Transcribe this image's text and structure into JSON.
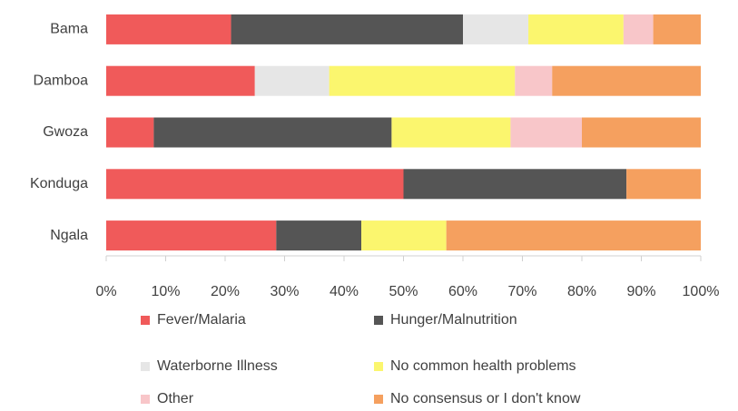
{
  "chart_data": {
    "type": "stacked_barh",
    "categories": [
      "Bama",
      "Damboa",
      "Gwoza",
      "Konduga",
      "Ngala"
    ],
    "series": [
      {
        "name": "Fever/Malaria",
        "color": "#f05a5a",
        "values": [
          21,
          25,
          8,
          50,
          28.6
        ]
      },
      {
        "name": "Hunger/Malnutrition",
        "color": "#555555",
        "values": [
          39,
          0,
          40,
          37.5,
          14.3
        ]
      },
      {
        "name": "Waterborne Illness",
        "color": "#e6e6e6",
        "values": [
          11,
          12.5,
          0,
          0,
          0
        ]
      },
      {
        "name": "No common health problems",
        "color": "#fbf66e",
        "values": [
          16,
          31.25,
          20,
          0,
          14.3
        ]
      },
      {
        "name": "Other",
        "color": "#f8c6c9",
        "values": [
          5,
          6.25,
          12,
          0,
          0
        ]
      },
      {
        "name": "No consensus or I don't know",
        "color": "#f5a05f",
        "values": [
          8,
          25,
          20,
          12.5,
          42.8
        ]
      }
    ],
    "xlim": [
      0,
      100
    ],
    "xticks": [
      {
        "value": 0,
        "label": "0%"
      },
      {
        "value": 10,
        "label": "10%"
      },
      {
        "value": 20,
        "label": "20%"
      },
      {
        "value": 30,
        "label": "30%"
      },
      {
        "value": 40,
        "label": "40%"
      },
      {
        "value": 50,
        "label": "50%"
      },
      {
        "value": 60,
        "label": "60%"
      },
      {
        "value": 70,
        "label": "70%"
      },
      {
        "value": 80,
        "label": "80%"
      },
      {
        "value": 90,
        "label": "90%"
      },
      {
        "value": 100,
        "label": "100%"
      }
    ],
    "grid": false,
    "legend": "bottom"
  }
}
